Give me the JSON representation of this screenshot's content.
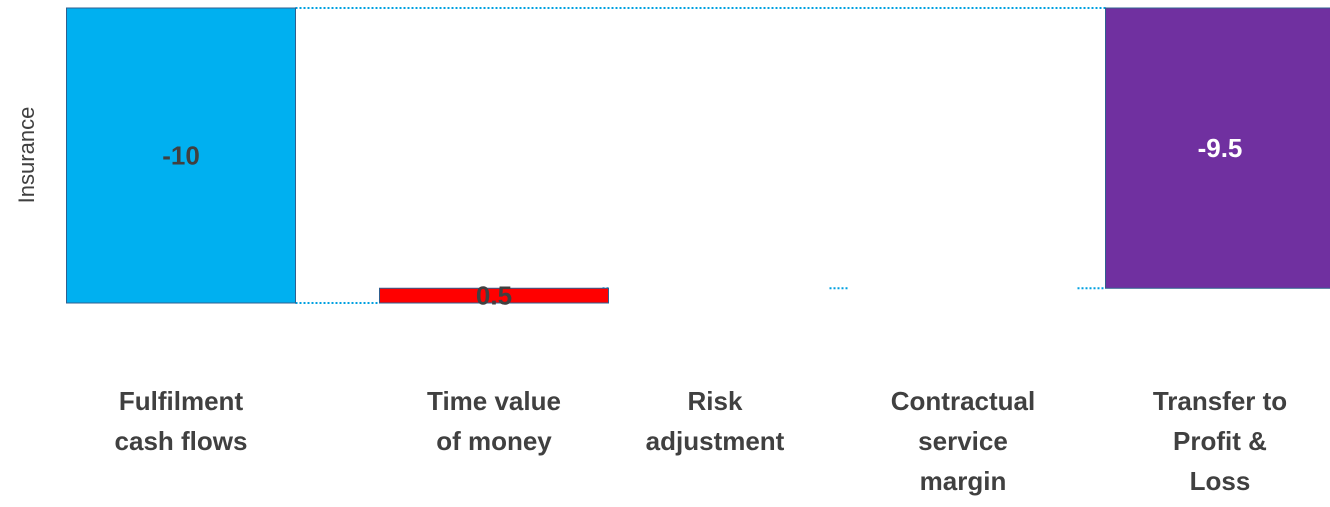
{
  "chart_data": {
    "type": "waterfall",
    "y_label": "Insurance",
    "categories": [
      [
        "Fulfilment",
        "cash flows"
      ],
      [
        "Time value",
        "of money"
      ],
      [
        "Risk",
        "adjustment"
      ],
      [
        "Contractual",
        "service",
        "margin"
      ],
      [
        "Transfer to",
        "Profit &",
        "Loss"
      ]
    ],
    "values": [
      -10,
      0.5,
      0,
      0,
      -9.5
    ],
    "value_labels": [
      "-10",
      "0.5",
      null,
      null,
      "-9.5"
    ],
    "colors": [
      "#00b0f0",
      "#ff0000",
      "#a6a6a6",
      "#a6a6a6",
      "#7030a0"
    ],
    "ylim": [
      -10,
      0
    ]
  }
}
